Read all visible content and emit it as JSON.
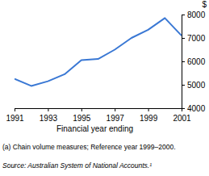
{
  "chart_data": {
    "type": "line",
    "xlabel": "Financial year ending",
    "ylabel": "$",
    "x": [
      1991,
      1992,
      1993,
      1994,
      1995,
      1996,
      1997,
      1998,
      1999,
      2000,
      2001
    ],
    "values": [
      5250,
      4950,
      5150,
      5450,
      6050,
      6100,
      6500,
      7000,
      7350,
      7850,
      7100
    ],
    "color": "#3a78d4",
    "xlim": [
      1991,
      2001
    ],
    "xticks": [
      1991,
      1993,
      1995,
      1997,
      1999,
      2001
    ],
    "ylim": [
      4000,
      8000
    ],
    "yticks": [
      4000,
      5000,
      6000,
      7000,
      8000
    ],
    "grid": false,
    "annotations": [
      "(a) Chain volume measures; Reference year 1999–2000.",
      "Source: Australian System of National Accounts.¹"
    ]
  }
}
